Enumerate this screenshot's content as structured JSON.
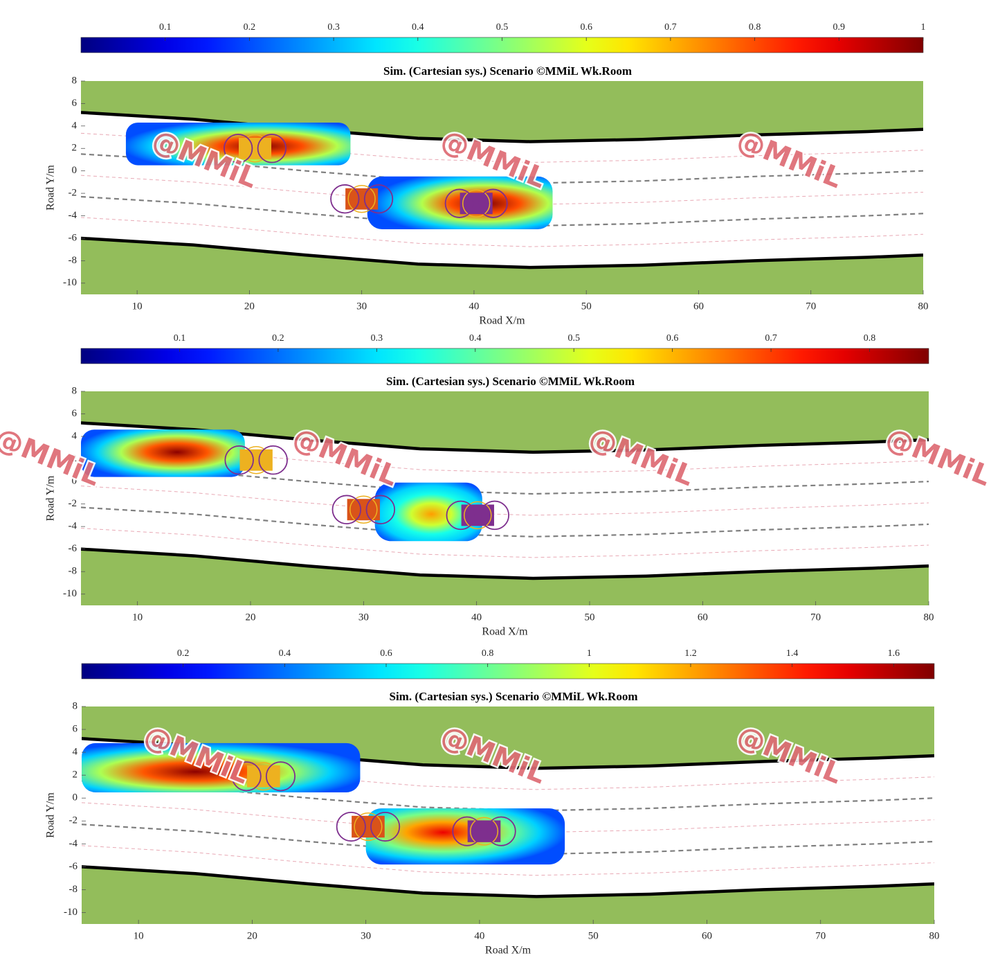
{
  "watermark": "@MMiL",
  "road": {
    "x": [
      5,
      15,
      25,
      35,
      45,
      55,
      65,
      75,
      80
    ],
    "fill": "#93bd5b",
    "lines": [
      {
        "style": "boundary",
        "y": [
          5.2,
          4.6,
          3.7,
          2.9,
          2.6,
          2.8,
          3.2,
          3.5,
          3.7
        ]
      },
      {
        "style": "boundary",
        "y": [
          -6,
          -6.6,
          -7.5,
          -8.3,
          -8.6,
          -8.4,
          -8,
          -7.7,
          -7.5
        ]
      },
      {
        "style": "lane",
        "y": [
          1.5,
          0.9,
          0,
          -0.8,
          -1.1,
          -0.9,
          -0.5,
          -0.2,
          0
        ]
      },
      {
        "style": "lane",
        "y": [
          -2.3,
          -2.9,
          -3.8,
          -4.6,
          -4.9,
          -4.7,
          -4.3,
          -4,
          -3.8
        ]
      },
      {
        "style": "center",
        "y": [
          3.35,
          2.75,
          1.85,
          1.05,
          0.75,
          0.95,
          1.35,
          1.65,
          1.85
        ]
      },
      {
        "style": "center",
        "y": [
          -0.4,
          -1,
          -1.9,
          -2.7,
          -3,
          -2.8,
          -2.4,
          -2.1,
          -1.9
        ]
      },
      {
        "style": "center",
        "y": [
          -4.15,
          -4.75,
          -5.65,
          -6.45,
          -6.75,
          -6.55,
          -6.15,
          -5.85,
          -5.65
        ]
      }
    ]
  },
  "chart_data": [
    {
      "type": "scenario",
      "title": "Sim. (Cartesian sys.) Scenario ©MMiL Wk.Room",
      "x_label": "Road X/m",
      "y_label": "Road Y/m",
      "xlim": [
        5,
        80
      ],
      "ylim": [
        -11,
        8
      ],
      "xticks": [
        10,
        20,
        30,
        40,
        50,
        60,
        70,
        80
      ],
      "yticks": [
        -10,
        -8,
        -6,
        -4,
        -2,
        0,
        2,
        4,
        6,
        8
      ],
      "colorbar": {
        "colormap": "jet",
        "lim": [
          0,
          1
        ],
        "ticks": [
          0.1,
          0.2,
          0.3,
          0.4,
          0.5,
          0.6,
          0.7,
          0.8,
          0.9,
          1
        ]
      },
      "fields": [
        {
          "x_range": [
            9,
            29
          ],
          "y_range": [
            0.5,
            4.3
          ],
          "peak_x": 21,
          "peak_y": 2.2,
          "peak": 1
        },
        {
          "x_range": [
            30.5,
            47
          ],
          "y_range": [
            -5.2,
            -0.5
          ],
          "peak_x": 41,
          "peak_y": -2.9,
          "peak": 1
        }
      ],
      "vehicles": [
        {
          "x": 20.5,
          "y": 2,
          "color": "#edb120"
        },
        {
          "x": 30,
          "y": -2.5,
          "color": "#d95319"
        },
        {
          "x": 40.2,
          "y": -2.9,
          "color": "#7e2f8e"
        }
      ]
    },
    {
      "type": "scenario",
      "title": "Sim. (Cartesian sys.) Scenario ©MMiL Wk.Room",
      "x_label": "Road X/m",
      "y_label": "Road Y/m",
      "xlim": [
        5,
        80
      ],
      "ylim": [
        -11,
        8
      ],
      "xticks": [
        10,
        20,
        30,
        40,
        50,
        60,
        70,
        80
      ],
      "yticks": [
        -10,
        -8,
        -6,
        -4,
        -2,
        0,
        2,
        4,
        6,
        8
      ],
      "colorbar": {
        "colormap": "jet",
        "lim": [
          0,
          0.86
        ],
        "ticks": [
          0.1,
          0.2,
          0.3,
          0.4,
          0.5,
          0.6,
          0.7,
          0.8
        ]
      },
      "fields": [
        {
          "x_range": [
            5,
            19.5
          ],
          "y_range": [
            0.4,
            4.6
          ],
          "peak_x": 13.5,
          "peak_y": 2.6,
          "peak": 0.85
        },
        {
          "x_range": [
            31,
            40.5
          ],
          "y_range": [
            -5.3,
            -0.1
          ],
          "peak_x": 36,
          "peak_y": -2.9,
          "peak": 0.62
        }
      ],
      "vehicles": [
        {
          "x": 20.5,
          "y": 1.9,
          "color": "#edb120"
        },
        {
          "x": 30,
          "y": -2.5,
          "color": "#d95319"
        },
        {
          "x": 40.1,
          "y": -3,
          "color": "#7e2f8e"
        }
      ]
    },
    {
      "type": "scenario",
      "title": "Sim. (Cartesian sys.) Scenario ©MMiL Wk.Room",
      "x_label": "Road X/m",
      "y_label": "Road Y/m",
      "xlim": [
        5,
        80
      ],
      "ylim": [
        -11,
        8
      ],
      "xticks": [
        10,
        20,
        30,
        40,
        50,
        60,
        70,
        80
      ],
      "yticks": [
        -10,
        -8,
        -6,
        -4,
        -2,
        0,
        2,
        4,
        6,
        8
      ],
      "colorbar": {
        "colormap": "jet",
        "lim": [
          0,
          1.68
        ],
        "ticks": [
          0.2,
          0.4,
          0.6,
          0.8,
          1,
          1.2,
          1.4,
          1.6
        ]
      },
      "fields": [
        {
          "x_range": [
            5,
            29.5
          ],
          "y_range": [
            0.5,
            4.8
          ],
          "peak_x": 15,
          "peak_y": 2.3,
          "peak": 1.66
        },
        {
          "x_range": [
            30,
            47.5
          ],
          "y_range": [
            -5.8,
            -0.9
          ],
          "peak_x": 36.8,
          "peak_y": -3,
          "peak": 1.5
        }
      ],
      "vehicles": [
        {
          "x": 21,
          "y": 1.9,
          "color": "#edb120"
        },
        {
          "x": 30.2,
          "y": -2.5,
          "color": "#d95319"
        },
        {
          "x": 40.4,
          "y": -2.9,
          "color": "#7e2f8e"
        }
      ]
    }
  ]
}
